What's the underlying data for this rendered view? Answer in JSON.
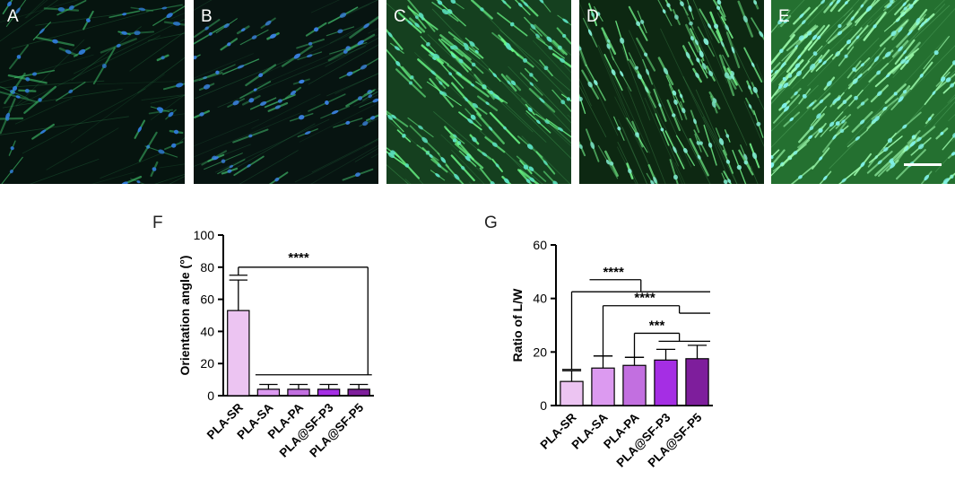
{
  "panels": [
    {
      "label": "A",
      "tone": "dim"
    },
    {
      "label": "B",
      "tone": "dim-blue"
    },
    {
      "label": "C",
      "tone": "bright"
    },
    {
      "label": "D",
      "tone": "dark-bright"
    },
    {
      "label": "E",
      "tone": "very-bright",
      "scale_bar": true
    }
  ],
  "chart_data": [
    {
      "panel_label": "F",
      "type": "bar",
      "categories": [
        "PLA-SR",
        "PLA-SA",
        "PLA-PA",
        "PLA@SF-P3",
        "PLA@SF-P5"
      ],
      "values": [
        53,
        4,
        4,
        4,
        4
      ],
      "errors": [
        19,
        3,
        3,
        3,
        3
      ],
      "colors": [
        "#ecc4f2",
        "#dc9af0",
        "#c26fe0",
        "#a52ee4",
        "#7e1e9c"
      ],
      "title": "",
      "xlabel": "",
      "ylabel": "Orientation angle (°)",
      "ylim": [
        0,
        100
      ],
      "yticks": [
        "0",
        "20",
        "40",
        "60",
        "80",
        "100"
      ],
      "significance": [
        "****"
      ]
    },
    {
      "panel_label": "G",
      "type": "bar",
      "categories": [
        "PLA-SR",
        "PLA-SA",
        "PLA-PA",
        "PLA@SF-P3",
        "PLA@SF-P5"
      ],
      "values": [
        9,
        14,
        15,
        17,
        17.5
      ],
      "errors": [
        4,
        4.5,
        3,
        4,
        5
      ],
      "colors": [
        "#ecc4f2",
        "#dc9af0",
        "#c26fe0",
        "#a52ee4",
        "#7e1e9c"
      ],
      "title": "",
      "xlabel": "",
      "ylabel": "Ratio of L/W",
      "ylim": [
        0,
        60
      ],
      "yticks": [
        "0",
        "20",
        "40",
        "60"
      ],
      "significance": [
        "****",
        "****",
        "***"
      ]
    }
  ]
}
